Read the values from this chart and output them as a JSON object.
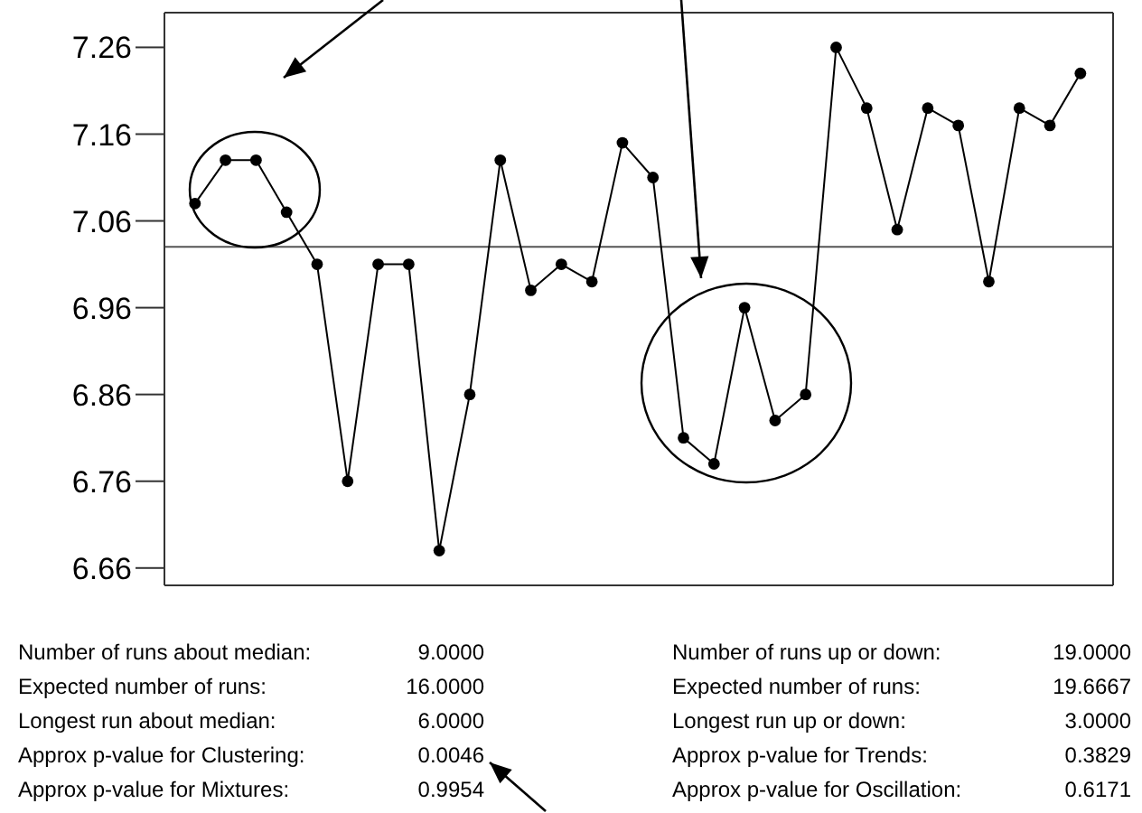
{
  "chart_data": {
    "type": "line",
    "categories": [
      null,
      null,
      null,
      null,
      null,
      null,
      null,
      null,
      null,
      null,
      null,
      null,
      null,
      null,
      null,
      null,
      null,
      null,
      null,
      null,
      null,
      null,
      null,
      null,
      null,
      null,
      null,
      null,
      null,
      null
    ],
    "series": [
      {
        "color": "#000000",
        "values": [
          7.08,
          7.13,
          7.13,
          7.07,
          7.01,
          6.76,
          7.01,
          7.01,
          6.68,
          6.86,
          7.13,
          6.98,
          7.01,
          6.99,
          7.15,
          7.11,
          6.81,
          6.78,
          6.96,
          6.83,
          6.86,
          7.26,
          7.19,
          7.05,
          7.19,
          7.17,
          6.99,
          7.19,
          7.17,
          7.23
        ]
      }
    ],
    "ylim": [
      6.64,
      7.3
    ],
    "yticks": [
      6.66,
      6.76,
      6.86,
      6.96,
      7.06,
      7.16,
      7.26
    ],
    "ref_lines": [
      {
        "axis": "y",
        "value": 7.03,
        "color": "#555555"
      }
    ],
    "marker": "circle",
    "line_style": "solid",
    "grid": false,
    "legend": false,
    "annotations": [
      "Number of runs about median:",
      "9.0000",
      "Expected number of runs:",
      "16.0000",
      "Longest run about median:",
      "6.0000",
      "Approx p-value for Clustering:",
      "0.0046",
      "Approx p-value for Mixtures:",
      "0.9954",
      "Number of runs up or down:",
      "19.0000",
      "Expected number of runs:",
      "19.6667",
      "Longest run up or down:",
      "3.0000",
      "Approx p-value for Trends:",
      "0.3829",
      "Approx p-value for Oscillation:",
      "0.6171"
    ]
  }
}
